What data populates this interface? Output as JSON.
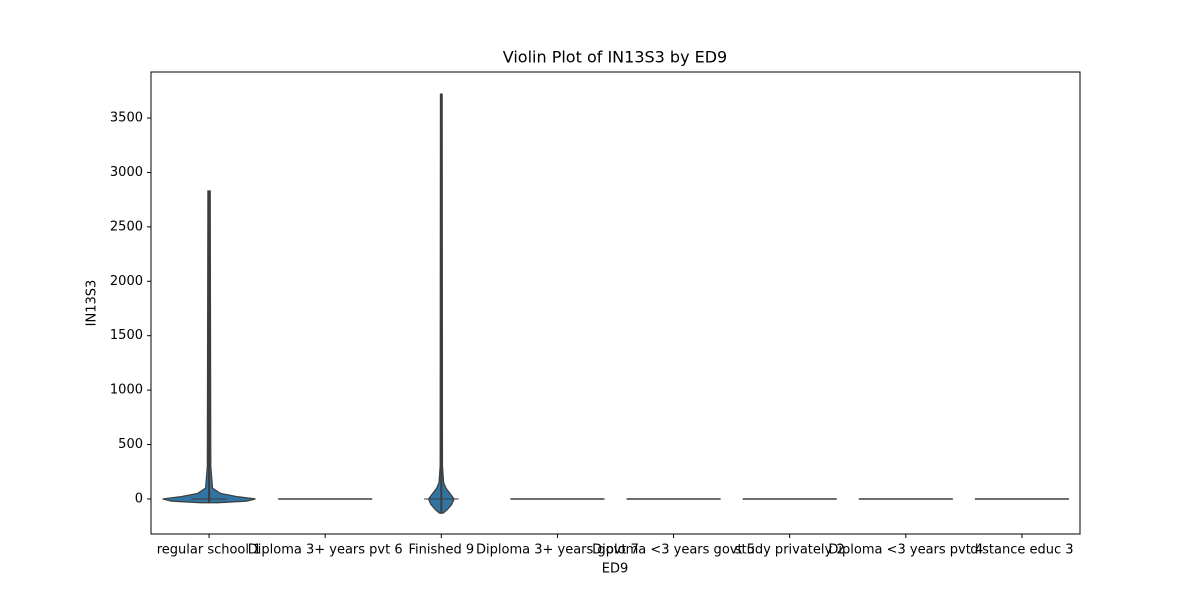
{
  "chart_data": {
    "type": "violin",
    "title": "Violin Plot of IN13S3 by ED9",
    "x_label": "ED9",
    "y_label": "IN13S3",
    "categories": [
      "regular school 1",
      "Diploma 3+ years pvt 6",
      "Finished 9",
      "Diploma 3+ years govt 7",
      "Diploma <3 years govt 5",
      "study privately 2",
      "Diploma <3 years pvt 4",
      "distance educ 3"
    ],
    "color": "#3274a1",
    "edge_color": "#3d3d3d",
    "ylim": [
      -322,
      3923
    ],
    "yticks": [
      0,
      500,
      1000,
      1500,
      2000,
      2500,
      3000,
      3500
    ],
    "violins": [
      {
        "min": -30,
        "max": 2830,
        "median": 0,
        "density": {
          "y": [
            -35,
            -20,
            0,
            20,
            50,
            100,
            300,
            2830
          ],
          "width": [
            0.15,
            0.65,
            0.8,
            0.5,
            0.2,
            0.06,
            0.03,
            0.02
          ]
        }
      },
      {
        "min": 0,
        "max": 0,
        "median": 0,
        "density": {
          "y": [
            0
          ],
          "width": [
            0.81
          ]
        }
      },
      {
        "min": -130,
        "max": 3720,
        "median": 0,
        "density": {
          "y": [
            -130,
            -100,
            -50,
            0,
            50,
            100,
            150,
            300,
            3720
          ],
          "width": [
            0.03,
            0.1,
            0.18,
            0.22,
            0.15,
            0.08,
            0.04,
            0.02,
            0.015
          ]
        }
      },
      {
        "min": 0,
        "max": 0,
        "median": 0,
        "density": {
          "y": [
            0
          ],
          "width": [
            0.81
          ]
        }
      },
      {
        "min": 0,
        "max": 0,
        "median": 0,
        "density": {
          "y": [
            0
          ],
          "width": [
            0.81
          ]
        }
      },
      {
        "min": 0,
        "max": 0,
        "median": 0,
        "density": {
          "y": [
            0
          ],
          "width": [
            0.81
          ]
        }
      },
      {
        "min": 0,
        "max": 0,
        "median": 0,
        "density": {
          "y": [
            0
          ],
          "width": [
            0.81
          ]
        }
      },
      {
        "min": 0,
        "max": 0,
        "median": 0,
        "density": {
          "y": [
            0
          ],
          "width": [
            0.81
          ]
        }
      }
    ]
  }
}
